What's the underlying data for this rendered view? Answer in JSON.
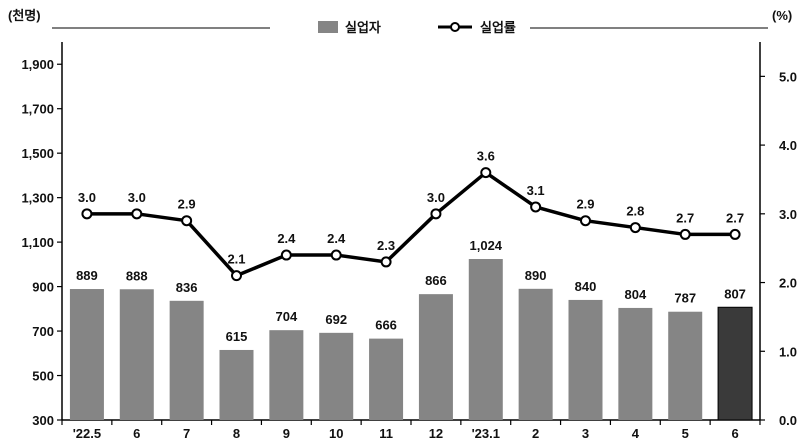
{
  "chart_data": {
    "type": "bar+line",
    "categories": [
      "'22.5",
      "6",
      "7",
      "8",
      "9",
      "10",
      "11",
      "12",
      "'23.1",
      "2",
      "3",
      "4",
      "5",
      "6"
    ],
    "series": [
      {
        "name": "실업자",
        "type": "bar",
        "axis": "left",
        "values": [
          889,
          888,
          836,
          615,
          704,
          692,
          666,
          866,
          1024,
          890,
          840,
          804,
          787,
          807
        ],
        "labels": [
          "889",
          "888",
          "836",
          "615",
          "704",
          "692",
          "666",
          "866",
          "1,024",
          "890",
          "840",
          "804",
          "787",
          "807"
        ],
        "color": "#858585",
        "highlight_last_color": "#3a3a3a"
      },
      {
        "name": "실업률",
        "type": "line",
        "axis": "right",
        "values": [
          3.0,
          3.0,
          2.9,
          2.1,
          2.4,
          2.4,
          2.3,
          3.0,
          3.6,
          3.1,
          2.9,
          2.8,
          2.7,
          2.7
        ],
        "labels": [
          "3.0",
          "3.0",
          "2.9",
          "2.1",
          "2.4",
          "2.4",
          "2.3",
          "3.0",
          "3.6",
          "3.1",
          "2.9",
          "2.8",
          "2.7",
          "2.7"
        ],
        "color": "#000000"
      }
    ],
    "left_axis": {
      "unit": "(천명)",
      "ylim": [
        300,
        2000
      ],
      "ticks": [
        300,
        500,
        700,
        900,
        1100,
        1300,
        1500,
        1700,
        1900
      ],
      "tick_labels": [
        "300",
        "500",
        "700",
        "900",
        "1,100",
        "1,300",
        "1,500",
        "1,700",
        "1,900"
      ]
    },
    "right_axis": {
      "unit": "(%)",
      "ylim": [
        0,
        5.5
      ],
      "ticks": [
        0,
        1,
        2,
        3,
        4,
        5
      ],
      "tick_labels": [
        "0.0",
        "1.0",
        "2.0",
        "3.0",
        "4.0",
        "5.0"
      ]
    },
    "legend_position": "top-center",
    "grid": false
  }
}
